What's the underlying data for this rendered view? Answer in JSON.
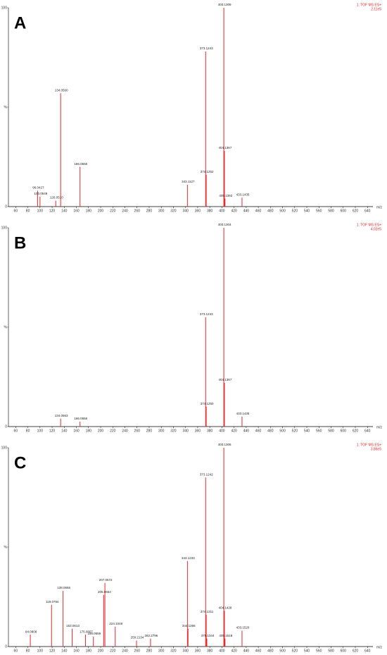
{
  "chart_data": [
    {
      "type": "stem",
      "panel_label": "A",
      "header": [
        "1: TOF MS ES+",
        "2.11e5"
      ],
      "xlabel": "m/z",
      "xlim": [
        48,
        649
      ],
      "xticks": [
        60,
        80,
        100,
        120,
        140,
        160,
        180,
        200,
        220,
        240,
        260,
        280,
        300,
        320,
        340,
        360,
        380,
        400,
        420,
        440,
        460,
        480,
        500,
        520,
        540,
        560,
        580,
        600,
        620,
        640
      ],
      "ylim": [
        0,
        100
      ],
      "yticks": [
        0,
        {
          "value": 50,
          "label": "%"
        },
        100
      ],
      "series": [
        {
          "color": "#e8262b",
          "x": [
            96.0427,
            100.0549,
            126.051,
            134.056,
            166.0656,
            343.1127,
            373.1243,
            374.1252,
            403.1309,
            404.1367,
            405.1392,
            433.1435
          ],
          "x_labels": [
            "96.0427",
            "100.0549",
            "126.0510",
            "134.0560",
            "166.0656",
            "343.1127",
            "373.1243",
            "374.1252",
            "403.1309",
            "404.1367",
            "405.1392",
            "433.1435"
          ],
          "values": [
            8,
            5,
            3,
            57,
            20,
            11,
            78,
            16,
            100,
            28,
            4,
            4.5
          ]
        }
      ]
    },
    {
      "type": "stem",
      "panel_label": "B",
      "header": [
        "1: TOF MS ES+",
        "4.02e5"
      ],
      "xlabel": "m/z",
      "xlim": [
        48,
        649
      ],
      "xticks": [
        60,
        80,
        100,
        120,
        140,
        160,
        180,
        200,
        220,
        240,
        260,
        280,
        300,
        320,
        340,
        360,
        380,
        400,
        420,
        440,
        460,
        480,
        500,
        520,
        540,
        560,
        580,
        600,
        620,
        640
      ],
      "ylim": [
        0,
        100
      ],
      "yticks": [
        0,
        {
          "value": 50,
          "label": "%"
        },
        100
      ],
      "series": [
        {
          "color": "#e8262b",
          "x": [
            134.0563,
            166.0656,
            373.1243,
            374.125,
            403.1304,
            404.1367,
            433.1435
          ],
          "x_labels": [
            "134.0563",
            "166.0656",
            "373.1243",
            "374.1250",
            "403.1304",
            "404.1367",
            "433.1435"
          ],
          "values": [
            4,
            2.5,
            55,
            10,
            100,
            22,
            5
          ]
        }
      ]
    },
    {
      "type": "stem",
      "panel_label": "C",
      "header": [
        "1: TOF MS ES+",
        "3.86e5"
      ],
      "xlabel": "m/z",
      "xlim": [
        48,
        649
      ],
      "xticks": [
        60,
        80,
        100,
        120,
        140,
        160,
        180,
        200,
        220,
        240,
        260,
        280,
        300,
        320,
        340,
        360,
        380,
        400,
        420,
        440,
        460,
        480,
        500,
        520,
        540,
        560,
        580,
        600,
        620,
        640
      ],
      "ylim": [
        0,
        100
      ],
      "yticks": [
        0,
        {
          "value": 50,
          "label": "%"
        },
        100
      ],
      "series": [
        {
          "color": "#e8262b",
          "x": [
            84.0808,
            119.0794,
            138.0665,
            153.0613,
            175.0807,
            188.0559,
            205.0654,
            207.0572,
            224.1049,
            259.2134,
            282.2796,
            343.1233,
            344.1266,
            373.1242,
            374.1311,
            375.1344,
            403.1306,
            404.1428,
            405.1518,
            433.152
          ],
          "x_labels": [
            "84.0808",
            "119.0794",
            "138.0665",
            "153.0613",
            "175.0807",
            "188.0559",
            "205.0654",
            "207.0572",
            "224.1049",
            "259.2134",
            "282.2796",
            "343.1233",
            "344.1266",
            "373.1242",
            "374.1311",
            "375.1344",
            "403.1306",
            "404.1428",
            "405.1518",
            "433.1520"
          ],
          "values": [
            6,
            21,
            28,
            9,
            6,
            5,
            26,
            32,
            10,
            3,
            4,
            43,
            9,
            85,
            16,
            4,
            100,
            18,
            4,
            8
          ]
        }
      ]
    }
  ]
}
